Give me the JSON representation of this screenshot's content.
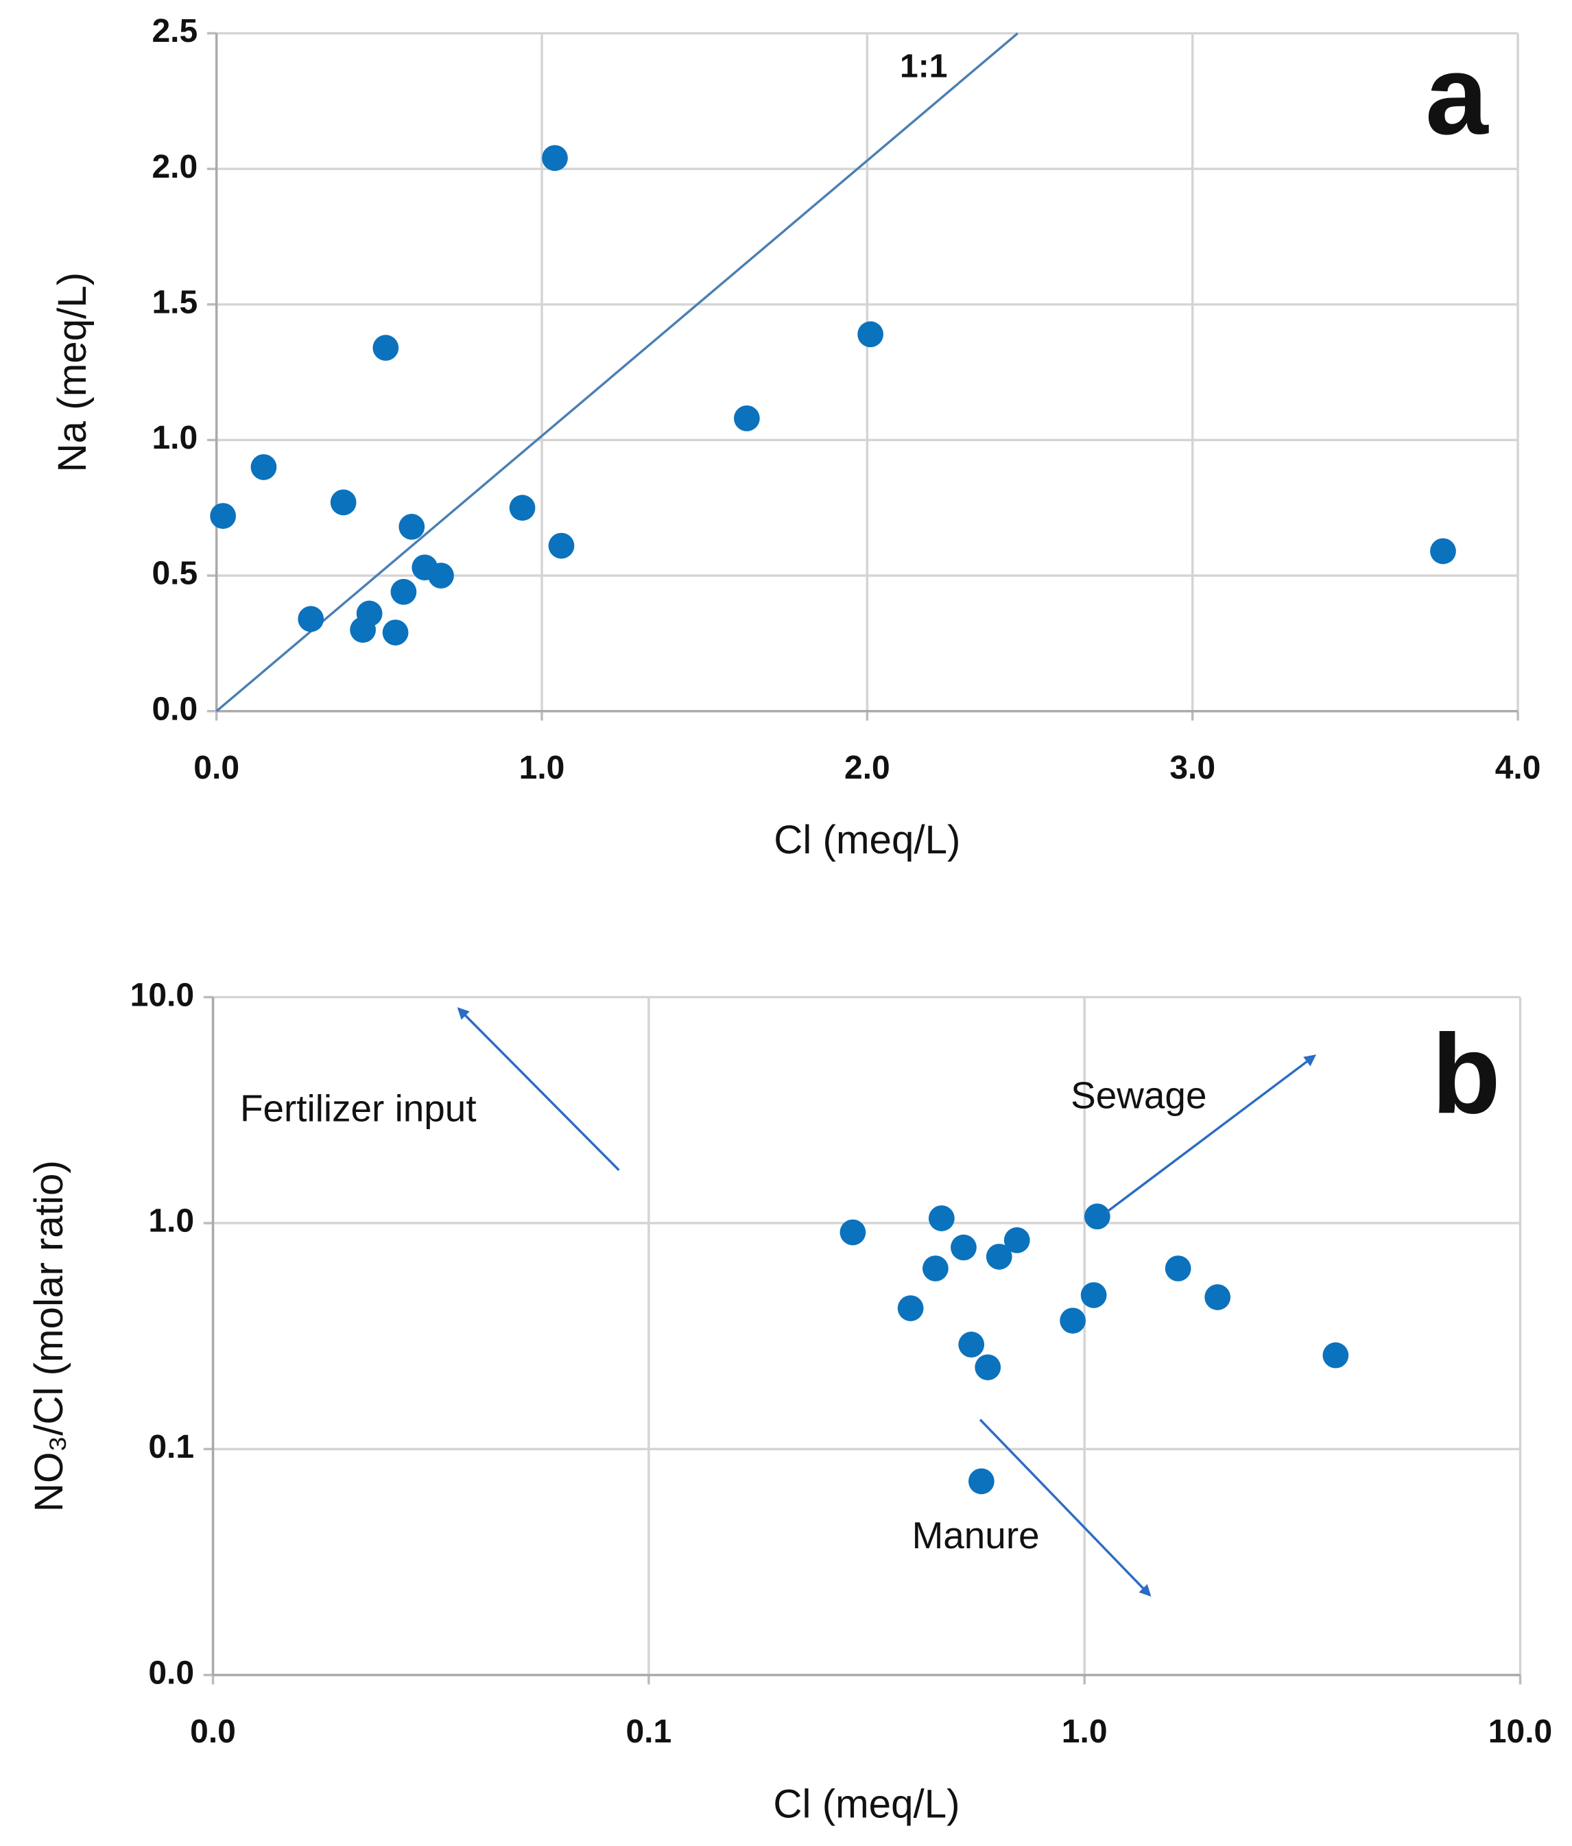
{
  "chart_data": [
    {
      "type": "scatter",
      "xlabel": "Cl (meq/L)",
      "ylabel": "Na (meq/L)",
      "x": [
        0.02,
        0.145,
        0.39,
        0.29,
        0.45,
        0.47,
        0.52,
        0.575,
        0.55,
        0.6,
        0.64,
        0.69,
        0.94,
        1.04,
        1.06,
        1.63,
        2.01,
        3.77
      ],
      "values": [
        0.72,
        0.9,
        0.77,
        0.34,
        0.3,
        0.36,
        1.34,
        0.44,
        0.29,
        0.68,
        0.53,
        0.5,
        0.75,
        2.04,
        0.61,
        1.08,
        1.39,
        0.59
      ],
      "color": "#0b72bd",
      "xlim": [
        0,
        4
      ],
      "xticks": [
        {
          "value": 0,
          "label": "0.0"
        },
        {
          "value": 1,
          "label": "1.0"
        },
        {
          "value": 2,
          "label": "2.0"
        },
        {
          "value": 3,
          "label": "3.0"
        },
        {
          "value": 4,
          "label": "4.0"
        }
      ],
      "ylim": [
        0,
        2.5
      ],
      "yticks": [
        {
          "value": 0,
          "label": "0.0"
        },
        0.5,
        {
          "value": 1,
          "label": "1.0"
        },
        1.5,
        {
          "value": 2,
          "label": "2.0"
        },
        2.5
      ],
      "grid": true,
      "log_x": false,
      "log_y": false,
      "annotations": [
        "a",
        "1:1"
      ]
    },
    {
      "type": "scatter",
      "xlabel": "Cl (meq/L)",
      "ylabel": "NO₃/Cl (molar ratio)",
      "x": [
        0.294,
        0.47,
        0.455,
        0.399,
        0.528,
        0.637,
        0.7,
        0.55,
        0.6,
        0.58,
        0.94,
        1.05,
        1.07,
        1.64,
        2.02,
        3.77
      ],
      "values": [
        0.91,
        1.05,
        0.63,
        0.42,
        0.78,
        0.71,
        0.84,
        0.29,
        0.23,
        0.072,
        0.37,
        0.48,
        1.07,
        0.63,
        0.47,
        0.26
      ],
      "color": "#0b72bd",
      "xlim": [
        0.01,
        10
      ],
      "xticks": [
        {
          "value": 0.01,
          "label": "0.0"
        },
        0.1,
        {
          "value": 1,
          "label": "1.0"
        },
        {
          "value": 10,
          "label": "10.0"
        }
      ],
      "ylim": [
        0.01,
        10
      ],
      "yticks": [
        {
          "value": 0.01,
          "label": "0.0"
        },
        0.1,
        {
          "value": 1,
          "label": "1.0"
        },
        {
          "value": 10,
          "label": "10.0"
        }
      ],
      "grid": true,
      "log_x": true,
      "log_y": true,
      "annotations": [
        "b",
        "Fertilizer input",
        "Sewage",
        "Manure"
      ]
    }
  ]
}
